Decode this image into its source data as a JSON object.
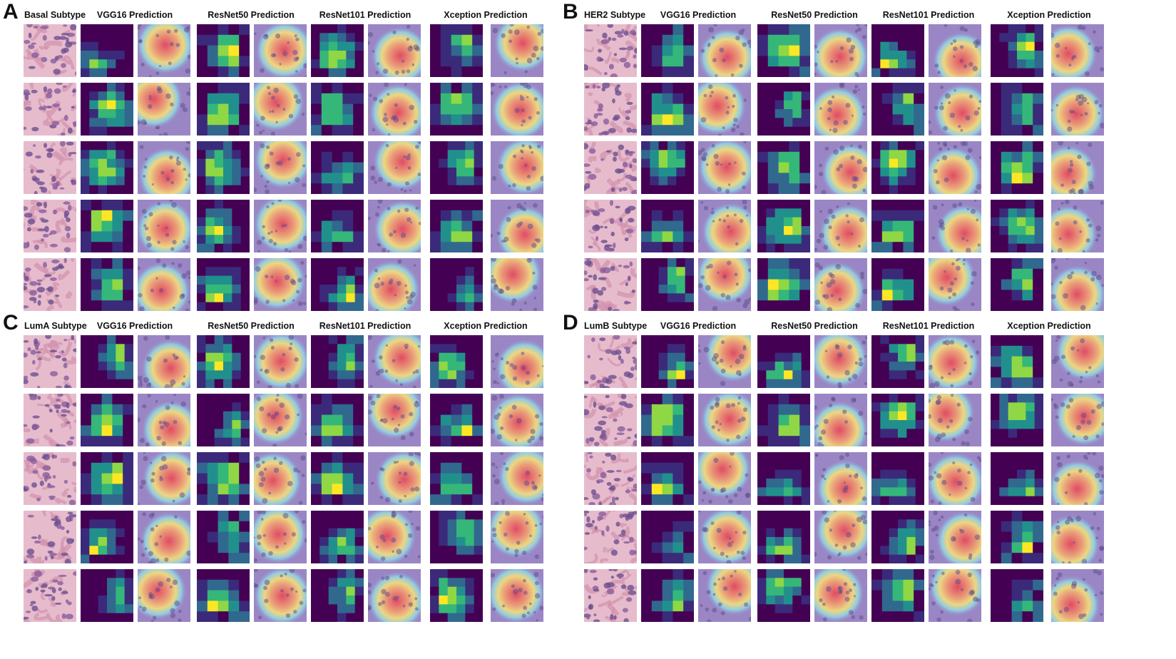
{
  "panels": [
    {
      "letter": "A",
      "subtype_label": "Basal Subtype"
    },
    {
      "letter": "B",
      "subtype_label": "HER2 Subtype"
    },
    {
      "letter": "C",
      "subtype_label": "LumA Subtype"
    },
    {
      "letter": "D",
      "subtype_label": "LumB Subtype"
    }
  ],
  "model_headers": [
    "VGG16 Prediction",
    "ResNet50 Prediction",
    "ResNet101 Prediction",
    "Xception Prediction"
  ],
  "colors": {
    "viridis": [
      "#440154",
      "#3b2a7a",
      "#31688e",
      "#21908d",
      "#35b779",
      "#8fd744",
      "#fde725"
    ],
    "tissue_pink": "#c48aa6",
    "tissue_purple": "#8e6fae",
    "overlay_red": "#e8455a",
    "overlay_yellow": "#f4e07a",
    "overlay_cyan": "#8fd3e6"
  }
}
